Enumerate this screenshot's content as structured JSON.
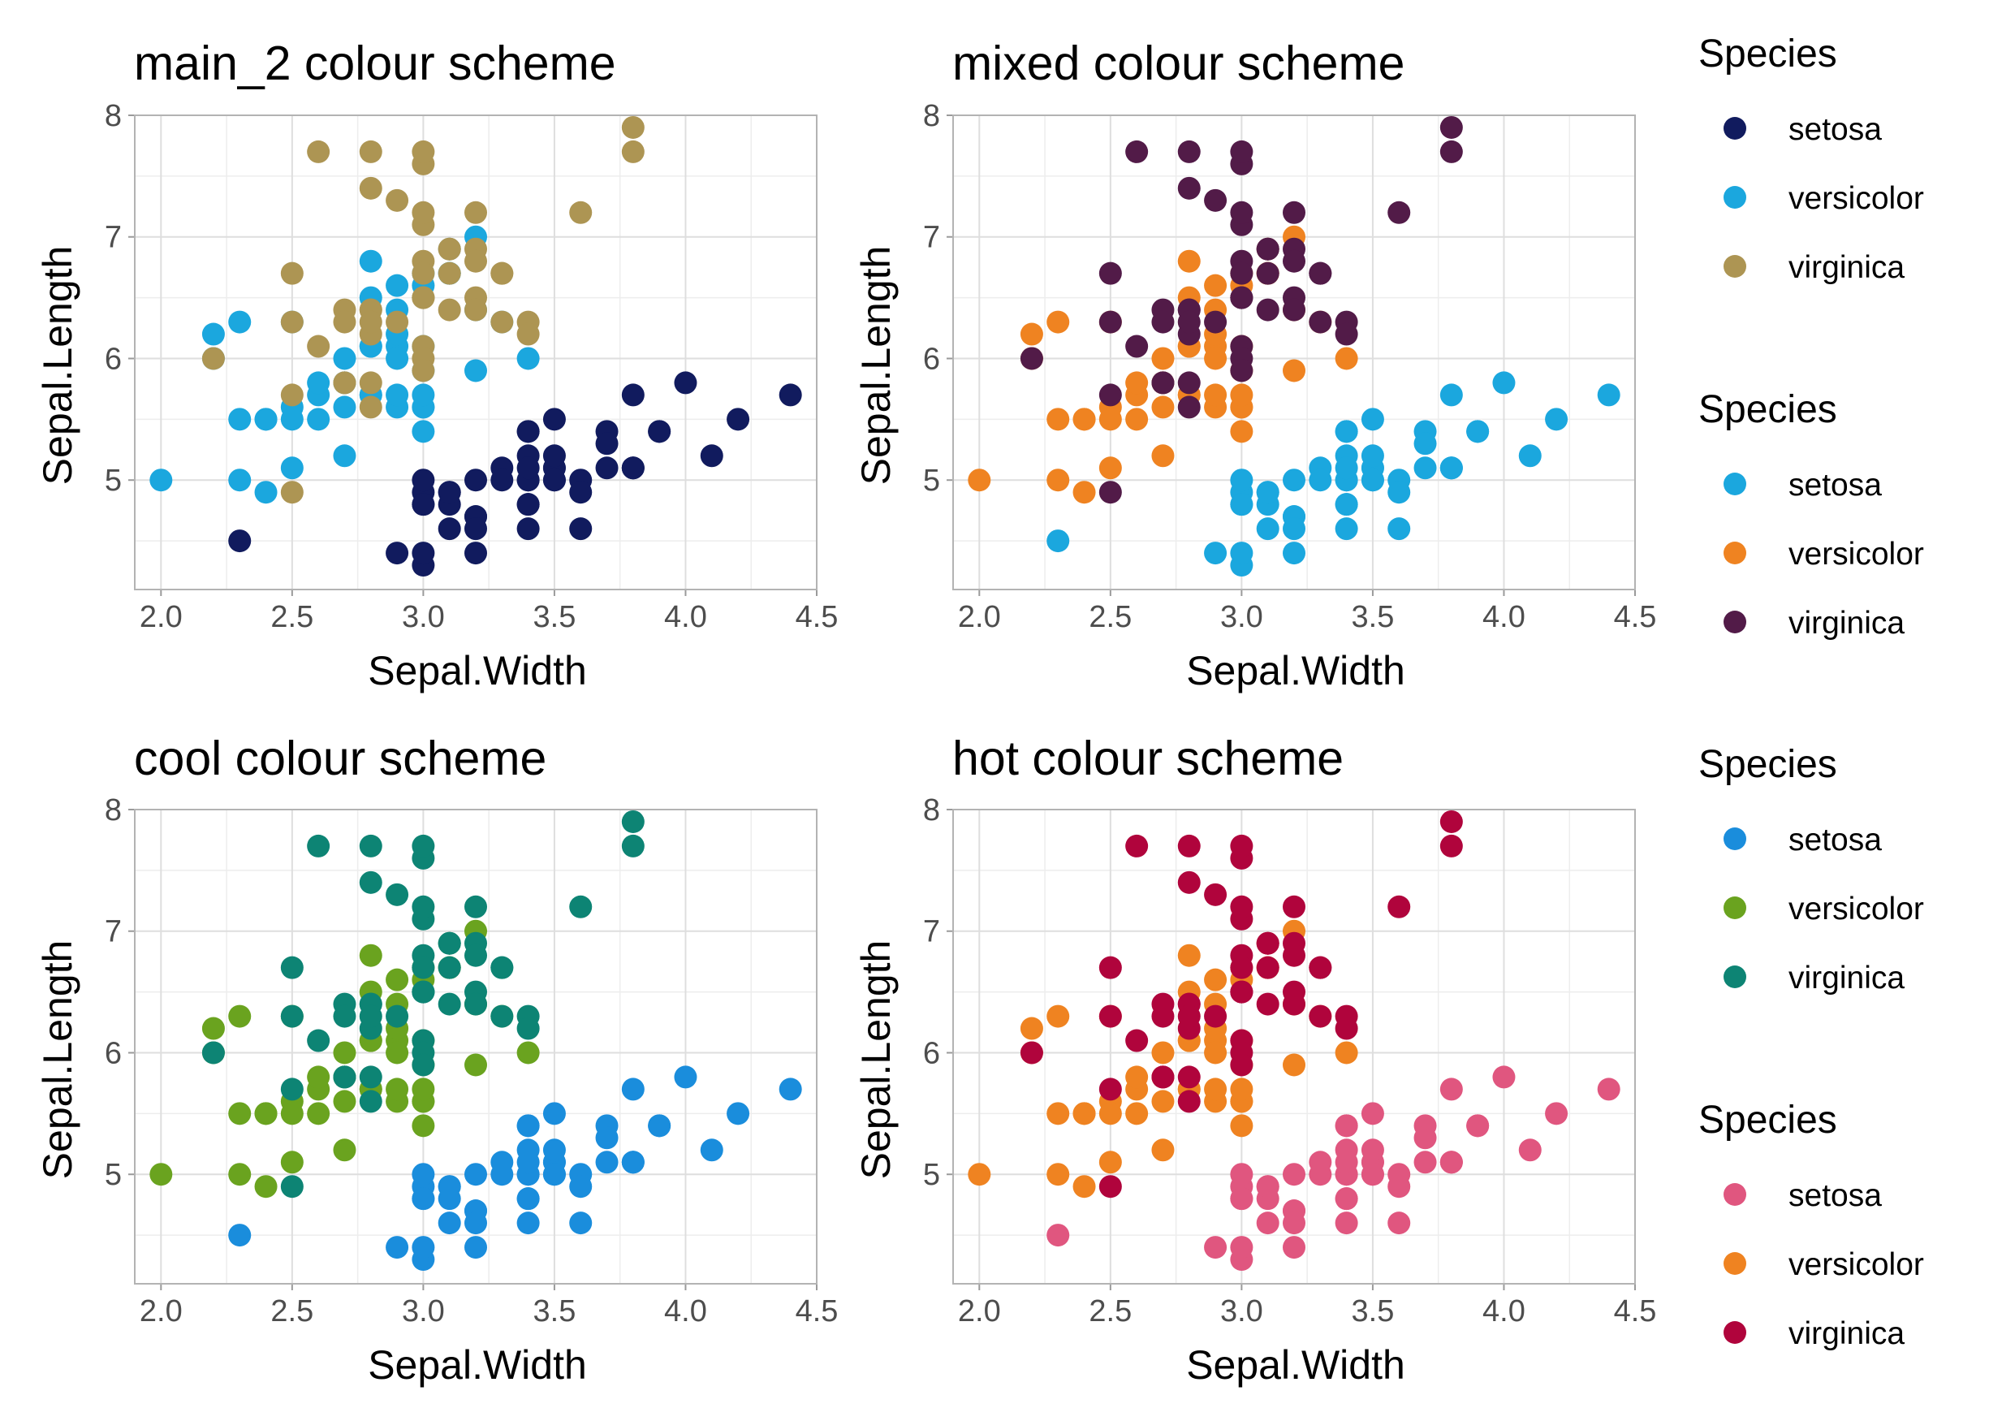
{
  "chart_data": [
    {
      "type": "scatter",
      "title": "main_2 colour scheme",
      "xlabel": "Sepal.Width",
      "ylabel": "Sepal.Length",
      "xlim": [
        1.9,
        4.5
      ],
      "ylim": [
        4.1,
        8.0
      ],
      "xticks": [
        "2.0",
        "2.5",
        "3.0",
        "3.5",
        "4.0",
        "4.5"
      ],
      "yticks": [
        "5",
        "6",
        "7",
        "8"
      ],
      "grid": true,
      "legend": {
        "title": "Species",
        "position": "right",
        "entries": [
          {
            "label": "setosa",
            "color": "#111b5e"
          },
          {
            "label": "versicolor",
            "color": "#1ba7de"
          },
          {
            "label": "virginica",
            "color": "#ad9553"
          }
        ]
      }
    },
    {
      "type": "scatter",
      "title": "mixed colour scheme",
      "xlabel": "Sepal.Width",
      "ylabel": "Sepal.Length",
      "xlim": [
        1.9,
        4.5
      ],
      "ylim": [
        4.1,
        8.0
      ],
      "xticks": [
        "2.0",
        "2.5",
        "3.0",
        "3.5",
        "4.0",
        "4.5"
      ],
      "yticks": [
        "5",
        "6",
        "7",
        "8"
      ],
      "grid": true,
      "legend": {
        "title": "Species",
        "position": "right",
        "entries": [
          {
            "label": "setosa",
            "color": "#1ba7de"
          },
          {
            "label": "versicolor",
            "color": "#ef8321"
          },
          {
            "label": "virginica",
            "color": "#521b48"
          }
        ]
      }
    },
    {
      "type": "scatter",
      "title": "cool colour scheme",
      "xlabel": "Sepal.Width",
      "ylabel": "Sepal.Length",
      "xlim": [
        1.9,
        4.5
      ],
      "ylim": [
        4.1,
        8.0
      ],
      "xticks": [
        "2.0",
        "2.5",
        "3.0",
        "3.5",
        "4.0",
        "4.5"
      ],
      "yticks": [
        "5",
        "6",
        "7",
        "8"
      ],
      "grid": true,
      "legend": {
        "title": "Species",
        "position": "right",
        "entries": [
          {
            "label": "setosa",
            "color": "#1a8ddc"
          },
          {
            "label": "versicolor",
            "color": "#6aa31f"
          },
          {
            "label": "virginica",
            "color": "#0d8474"
          }
        ]
      }
    },
    {
      "type": "scatter",
      "title": "hot colour scheme",
      "xlabel": "Sepal.Width",
      "ylabel": "Sepal.Length",
      "xlim": [
        1.9,
        4.5
      ],
      "ylim": [
        4.1,
        8.0
      ],
      "xticks": [
        "2.0",
        "2.5",
        "3.0",
        "3.5",
        "4.0",
        "4.5"
      ],
      "yticks": [
        "5",
        "6",
        "7",
        "8"
      ],
      "grid": true,
      "legend": {
        "title": "Species",
        "position": "right",
        "entries": [
          {
            "label": "setosa",
            "color": "#e0567f"
          },
          {
            "label": "versicolor",
            "color": "#ef8321"
          },
          {
            "label": "virginica",
            "color": "#b0043c"
          }
        ]
      }
    }
  ],
  "species_data": {
    "setosa": [
      [
        3.5,
        5.1
      ],
      [
        3.0,
        4.9
      ],
      [
        3.2,
        4.7
      ],
      [
        3.1,
        4.6
      ],
      [
        3.6,
        5.0
      ],
      [
        3.9,
        5.4
      ],
      [
        3.4,
        4.6
      ],
      [
        3.4,
        5.0
      ],
      [
        2.9,
        4.4
      ],
      [
        3.1,
        4.9
      ],
      [
        3.7,
        5.4
      ],
      [
        3.4,
        4.8
      ],
      [
        3.0,
        4.8
      ],
      [
        3.0,
        4.3
      ],
      [
        4.0,
        5.8
      ],
      [
        4.4,
        5.7
      ],
      [
        3.9,
        5.4
      ],
      [
        3.5,
        5.1
      ],
      [
        3.8,
        5.7
      ],
      [
        3.8,
        5.1
      ],
      [
        3.4,
        5.4
      ],
      [
        3.7,
        5.1
      ],
      [
        3.6,
        4.6
      ],
      [
        3.3,
        5.1
      ],
      [
        3.4,
        4.8
      ],
      [
        3.0,
        5.0
      ],
      [
        3.4,
        5.0
      ],
      [
        3.5,
        5.2
      ],
      [
        3.4,
        5.2
      ],
      [
        3.2,
        4.7
      ],
      [
        3.1,
        4.8
      ],
      [
        3.4,
        5.4
      ],
      [
        4.1,
        5.2
      ],
      [
        4.2,
        5.5
      ],
      [
        3.1,
        4.9
      ],
      [
        3.2,
        5.0
      ],
      [
        3.5,
        5.5
      ],
      [
        3.6,
        4.9
      ],
      [
        3.0,
        4.4
      ],
      [
        3.4,
        5.1
      ],
      [
        3.5,
        5.0
      ],
      [
        2.3,
        4.5
      ],
      [
        3.2,
        4.4
      ],
      [
        3.5,
        5.0
      ],
      [
        3.8,
        5.1
      ],
      [
        3.0,
        4.8
      ],
      [
        3.8,
        5.1
      ],
      [
        3.2,
        4.6
      ],
      [
        3.7,
        5.3
      ],
      [
        3.3,
        5.0
      ]
    ],
    "versicolor": [
      [
        3.2,
        7.0
      ],
      [
        3.2,
        6.4
      ],
      [
        3.1,
        6.9
      ],
      [
        2.3,
        5.5
      ],
      [
        2.8,
        6.5
      ],
      [
        2.8,
        5.7
      ],
      [
        3.3,
        6.3
      ],
      [
        2.4,
        4.9
      ],
      [
        2.9,
        6.6
      ],
      [
        2.7,
        5.2
      ],
      [
        2.0,
        5.0
      ],
      [
        3.0,
        5.9
      ],
      [
        2.2,
        6.0
      ],
      [
        2.9,
        6.1
      ],
      [
        2.9,
        5.6
      ],
      [
        3.1,
        6.7
      ],
      [
        3.0,
        5.6
      ],
      [
        2.7,
        5.8
      ],
      [
        2.2,
        6.2
      ],
      [
        2.5,
        5.6
      ],
      [
        3.2,
        5.9
      ],
      [
        2.8,
        6.1
      ],
      [
        2.5,
        6.3
      ],
      [
        2.8,
        6.1
      ],
      [
        2.9,
        6.4
      ],
      [
        3.0,
        6.6
      ],
      [
        2.8,
        6.8
      ],
      [
        3.0,
        6.7
      ],
      [
        2.9,
        6.0
      ],
      [
        2.6,
        5.7
      ],
      [
        2.4,
        5.5
      ],
      [
        2.4,
        5.5
      ],
      [
        2.7,
        5.8
      ],
      [
        2.7,
        6.0
      ],
      [
        3.0,
        5.4
      ],
      [
        3.4,
        6.0
      ],
      [
        3.1,
        6.7
      ],
      [
        2.3,
        6.3
      ],
      [
        3.0,
        5.6
      ],
      [
        2.5,
        5.5
      ],
      [
        2.6,
        5.5
      ],
      [
        3.0,
        6.1
      ],
      [
        2.6,
        5.8
      ],
      [
        2.3,
        5.0
      ],
      [
        2.7,
        5.6
      ],
      [
        3.0,
        5.7
      ],
      [
        2.9,
        5.7
      ],
      [
        2.9,
        6.2
      ],
      [
        2.5,
        5.1
      ],
      [
        2.8,
        5.7
      ]
    ],
    "virginica": [
      [
        3.3,
        6.3
      ],
      [
        2.7,
        5.8
      ],
      [
        3.0,
        7.1
      ],
      [
        2.9,
        6.3
      ],
      [
        3.0,
        6.5
      ],
      [
        3.0,
        7.6
      ],
      [
        2.5,
        4.9
      ],
      [
        2.9,
        7.3
      ],
      [
        2.5,
        6.7
      ],
      [
        3.6,
        7.2
      ],
      [
        3.2,
        6.5
      ],
      [
        2.7,
        6.4
      ],
      [
        3.0,
        6.8
      ],
      [
        2.5,
        5.7
      ],
      [
        2.8,
        5.8
      ],
      [
        3.2,
        6.4
      ],
      [
        3.0,
        6.5
      ],
      [
        3.8,
        7.7
      ],
      [
        2.6,
        7.7
      ],
      [
        2.2,
        6.0
      ],
      [
        3.2,
        6.9
      ],
      [
        2.8,
        5.6
      ],
      [
        2.8,
        7.7
      ],
      [
        2.7,
        6.3
      ],
      [
        3.3,
        6.7
      ],
      [
        3.2,
        7.2
      ],
      [
        2.8,
        6.2
      ],
      [
        3.0,
        6.1
      ],
      [
        2.8,
        6.4
      ],
      [
        3.0,
        7.2
      ],
      [
        2.8,
        7.4
      ],
      [
        3.8,
        7.9
      ],
      [
        2.8,
        6.4
      ],
      [
        2.8,
        6.3
      ],
      [
        2.6,
        6.1
      ],
      [
        3.0,
        7.7
      ],
      [
        3.4,
        6.3
      ],
      [
        3.1,
        6.4
      ],
      [
        3.0,
        6.0
      ],
      [
        3.1,
        6.9
      ],
      [
        3.1,
        6.7
      ],
      [
        3.1,
        6.9
      ],
      [
        2.7,
        5.8
      ],
      [
        3.2,
        6.8
      ],
      [
        3.3,
        6.7
      ],
      [
        3.0,
        6.7
      ],
      [
        2.5,
        6.3
      ],
      [
        3.0,
        6.5
      ],
      [
        3.4,
        6.2
      ],
      [
        3.0,
        5.9
      ]
    ]
  }
}
